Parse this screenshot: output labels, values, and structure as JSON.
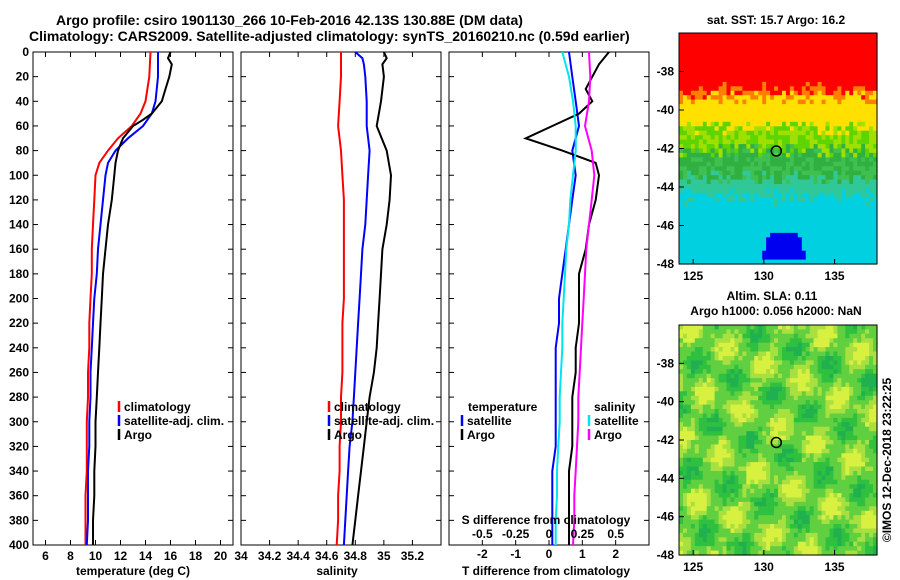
{
  "header": {
    "title_line1": "Argo profile: csiro 1901130_266 10-Feb-2016 42.13S 130.88E (DM data)",
    "title_line2": "Climatology: CARS2009. Satellite-adjusted climatology: synTS_20160210.nc (0.59d earlier)"
  },
  "colors": {
    "climatology": "#ff0000",
    "satellite": "#0000ff",
    "argo": "#000000",
    "salinity_satellite": "#00e5ee",
    "salinity_argo": "#ff00ff"
  },
  "chart_data": [
    {
      "type": "line",
      "id": "temperature",
      "xlabel": "temperature (deg C)",
      "ylabel": "",
      "xlim": [
        5,
        21
      ],
      "ylim": [
        400,
        0
      ],
      "xticks": [
        6,
        8,
        10,
        12,
        14,
        16,
        18,
        20
      ],
      "yticks": [
        0,
        20,
        40,
        60,
        80,
        100,
        120,
        140,
        160,
        180,
        200,
        220,
        240,
        260,
        280,
        300,
        320,
        340,
        360,
        380,
        400
      ],
      "legend": [
        "climatology",
        "satellite-adj. clim.",
        "Argo"
      ],
      "series": [
        {
          "name": "climatology",
          "depth": [
            0,
            20,
            40,
            50,
            60,
            70,
            80,
            90,
            100,
            120,
            140,
            160,
            180,
            200,
            220,
            240,
            260,
            280,
            300,
            320,
            340,
            360,
            380,
            400
          ],
          "values": [
            14.4,
            14.3,
            14.0,
            13.6,
            12.9,
            11.8,
            11.0,
            10.3,
            10.0,
            9.9,
            9.8,
            9.7,
            9.7,
            9.6,
            9.5,
            9.5,
            9.4,
            9.4,
            9.3,
            9.3,
            9.3,
            9.2,
            9.2,
            9.2
          ]
        },
        {
          "name": "satellite-adj. clim.",
          "depth": [
            0,
            20,
            40,
            50,
            60,
            70,
            80,
            90,
            100,
            120,
            140,
            160,
            180,
            200,
            220,
            240,
            260,
            280,
            300,
            320,
            340,
            360,
            380,
            400
          ],
          "values": [
            15.0,
            15.0,
            14.8,
            14.5,
            13.8,
            12.6,
            11.6,
            11.0,
            10.8,
            10.6,
            10.4,
            10.2,
            10.1,
            9.9,
            9.8,
            9.7,
            9.6,
            9.6,
            9.5,
            9.5,
            9.4,
            9.4,
            9.4,
            9.3
          ]
        },
        {
          "name": "Argo",
          "depth": [
            0,
            5,
            10,
            20,
            30,
            40,
            50,
            55,
            60,
            70,
            80,
            90,
            100,
            120,
            140,
            160,
            180,
            200,
            220,
            240,
            260,
            280,
            300,
            320,
            340,
            360,
            380,
            400
          ],
          "values": [
            16.0,
            15.8,
            16.1,
            15.9,
            15.6,
            15.3,
            14.5,
            13.8,
            13.0,
            12.2,
            11.8,
            11.6,
            11.5,
            11.3,
            11.0,
            10.8,
            10.6,
            10.5,
            10.4,
            10.3,
            10.2,
            10.1,
            10.0,
            10.0,
            9.9,
            9.9,
            9.8,
            9.8
          ]
        }
      ]
    },
    {
      "type": "line",
      "id": "salinity",
      "xlabel": "salinity",
      "ylabel": "",
      "xlim": [
        34,
        35.4
      ],
      "ylim": [
        400,
        0
      ],
      "xticks": [
        34,
        34.2,
        34.4,
        34.6,
        34.8,
        35,
        35.2
      ],
      "legend": [
        "climatology",
        "satellite-adj. clim.",
        "Argo"
      ],
      "series": [
        {
          "name": "climatology",
          "depth": [
            0,
            20,
            40,
            60,
            80,
            100,
            120,
            140,
            160,
            180,
            200,
            220,
            240,
            260,
            280,
            300,
            320,
            340,
            360,
            380,
            400
          ],
          "values": [
            34.7,
            34.7,
            34.69,
            34.68,
            34.7,
            34.71,
            34.72,
            34.72,
            34.72,
            34.72,
            34.72,
            34.71,
            34.71,
            34.71,
            34.7,
            34.7,
            34.69,
            34.69,
            34.68,
            34.68,
            34.67
          ]
        },
        {
          "name": "satellite-adj. clim.",
          "depth": [
            0,
            5,
            10,
            20,
            40,
            60,
            80,
            100,
            120,
            140,
            160,
            180,
            200,
            220,
            240,
            260,
            280,
            300,
            320,
            340,
            360,
            380,
            400
          ],
          "values": [
            34.8,
            34.85,
            34.86,
            34.87,
            34.88,
            34.88,
            34.9,
            34.89,
            34.88,
            34.87,
            34.85,
            34.84,
            34.83,
            34.82,
            34.81,
            34.8,
            34.79,
            34.78,
            34.76,
            34.75,
            34.74,
            34.73,
            34.72
          ]
        },
        {
          "name": "Argo",
          "depth": [
            0,
            5,
            10,
            20,
            40,
            60,
            80,
            100,
            120,
            140,
            160,
            180,
            200,
            220,
            240,
            260,
            280,
            300,
            320,
            340,
            360,
            380,
            400
          ],
          "values": [
            35.0,
            35.02,
            34.99,
            35.0,
            34.98,
            34.95,
            35.02,
            35.05,
            35.04,
            35.02,
            34.99,
            34.98,
            34.97,
            34.96,
            34.95,
            34.93,
            34.9,
            34.88,
            34.86,
            34.84,
            34.82,
            34.8,
            34.78
          ]
        }
      ]
    },
    {
      "type": "line",
      "id": "difference",
      "xlabel": "T difference from climatology",
      "xlabel2": "S difference from climatology",
      "xlim": [
        -3,
        3
      ],
      "ylim": [
        400,
        0
      ],
      "xticks": [
        -2,
        -1,
        0,
        1,
        2
      ],
      "xticks2": [
        "-0.5",
        "-0.25",
        "0",
        "0.25",
        "0.5"
      ],
      "legend_temperature": [
        "temperature",
        "satellite",
        "Argo"
      ],
      "legend_salinity": [
        "salinity",
        "satellite",
        "Argo"
      ],
      "series": [
        {
          "name": "T satellite",
          "depth": [
            0,
            20,
            40,
            60,
            80,
            100,
            120,
            140,
            160,
            180,
            200,
            220,
            240,
            260,
            280,
            300,
            320,
            340,
            360,
            380,
            400
          ],
          "values": [
            0.6,
            0.7,
            0.8,
            0.9,
            0.7,
            0.8,
            0.7,
            0.6,
            0.5,
            0.4,
            0.3,
            0.3,
            0.2,
            0.2,
            0.2,
            0.2,
            0.2,
            0.1,
            0.1,
            0.1,
            0.1
          ]
        },
        {
          "name": "T Argo",
          "depth": [
            0,
            10,
            20,
            30,
            40,
            50,
            60,
            70,
            80,
            90,
            100,
            120,
            140,
            160,
            180,
            200,
            220,
            240,
            260,
            280,
            300,
            320,
            340,
            360,
            380,
            400
          ],
          "values": [
            1.8,
            1.5,
            1.3,
            1.1,
            1.3,
            0.9,
            0.1,
            -0.7,
            0.4,
            1.4,
            1.5,
            1.4,
            1.2,
            1.1,
            0.9,
            0.9,
            0.9,
            0.8,
            0.8,
            0.7,
            0.7,
            0.7,
            0.6,
            0.6,
            0.6,
            0.6
          ]
        },
        {
          "name": "S satellite",
          "depth": [
            0,
            20,
            40,
            60,
            80,
            100,
            120,
            140,
            160,
            180,
            200,
            220,
            240,
            260,
            280,
            300,
            320,
            340,
            360,
            380,
            400
          ],
          "values": [
            0.1,
            0.15,
            0.18,
            0.2,
            0.2,
            0.18,
            0.16,
            0.15,
            0.13,
            0.12,
            0.11,
            0.1,
            0.1,
            0.09,
            0.08,
            0.08,
            0.07,
            0.06,
            0.06,
            0.05,
            0.05
          ]
        },
        {
          "name": "S Argo",
          "depth": [
            0,
            20,
            40,
            60,
            80,
            100,
            120,
            140,
            160,
            180,
            200,
            220,
            240,
            260,
            280,
            300,
            320,
            340,
            360,
            380,
            400
          ],
          "values": [
            0.3,
            0.31,
            0.3,
            0.27,
            0.32,
            0.34,
            0.32,
            0.3,
            0.28,
            0.27,
            0.26,
            0.25,
            0.24,
            0.23,
            0.22,
            0.22,
            0.21,
            0.2,
            0.19,
            0.19,
            0.18
          ]
        }
      ]
    },
    {
      "type": "heatmap",
      "id": "sst_map",
      "title": "sat. SST: 15.7 Argo: 16.2",
      "xlim": [
        124,
        138
      ],
      "ylim": [
        -48,
        -36
      ],
      "xticks": [
        125,
        130,
        135
      ],
      "yticks": [
        -38,
        -40,
        -42,
        -44,
        -46,
        -48
      ],
      "marker": {
        "lon": 130.88,
        "lat": -42.13
      }
    },
    {
      "type": "heatmap",
      "id": "sla_map",
      "title": "Altim. SLA: 0.11",
      "subtitle": "Argo h1000: 0.056 h2000: NaN",
      "xlim": [
        124,
        138
      ],
      "ylim": [
        -48,
        -36
      ],
      "xticks": [
        125,
        130,
        135
      ],
      "yticks": [
        -38,
        -40,
        -42,
        -44,
        -46,
        -48
      ],
      "marker": {
        "lon": 130.88,
        "lat": -42.13
      }
    }
  ],
  "credit": "©IMOS 12-Dec-2018 23:22:25"
}
